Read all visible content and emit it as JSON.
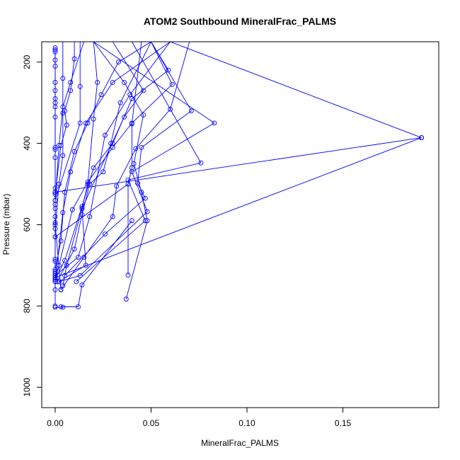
{
  "chart_data": {
    "type": "line",
    "title": "ATOM2 Southbound MineralFrac_PALMS",
    "xlabel": "MineralFrac_PALMS",
    "ylabel": "Pressure (mbar)",
    "xlim": [
      -0.007,
      0.2
    ],
    "ylim": [
      1050,
      150
    ],
    "y_reversed": true,
    "x_ticks": [
      0.0,
      0.05,
      0.1,
      0.15
    ],
    "x_tick_labels": [
      "0.00",
      "0.05",
      "0.10",
      "0.15"
    ],
    "y_ticks": [
      200,
      400,
      600,
      800,
      1000
    ],
    "y_tick_labels": [
      "200",
      "400",
      "600",
      "800",
      "1000"
    ],
    "series_color": "#0000ff",
    "grid": false,
    "series": [
      {
        "points": [
          [
            0.0,
            165
          ],
          [
            0.0,
            170
          ],
          [
            0.0,
            210
          ],
          [
            0.0,
            250
          ],
          [
            0.0,
            290
          ],
          [
            0.0,
            310
          ],
          [
            0.0,
            410
          ],
          [
            0.0,
            520
          ],
          [
            0.0,
            560
          ],
          [
            0.0,
            630
          ],
          [
            0.0,
            720
          ],
          [
            0.0,
            740
          ],
          [
            0.0,
            800
          ]
        ]
      },
      {
        "points": [
          [
            0.0,
            175
          ],
          [
            0.0,
            195
          ],
          [
            0.0,
            270
          ],
          [
            0.0,
            300
          ],
          [
            0.0,
            335
          ],
          [
            0.0,
            415
          ],
          [
            0.0,
            435
          ],
          [
            0.0,
            510
          ],
          [
            0.0,
            550
          ],
          [
            0.0,
            595
          ],
          [
            0.0,
            685
          ],
          [
            0.0,
            730
          ],
          [
            0.0,
            760
          ]
        ]
      },
      {
        "points": [
          [
            0.01,
            150
          ],
          [
            0.01,
            192
          ],
          [
            0.008,
            270
          ],
          [
            0.005,
            320
          ],
          [
            0.006,
            355
          ],
          [
            0.003,
            405
          ],
          [
            0.0,
            525
          ],
          [
            0.0,
            580
          ],
          [
            0.0,
            715
          ]
        ]
      },
      {
        "points": [
          [
            0.06,
            150
          ],
          [
            0.03,
            250
          ],
          [
            0.016,
            350
          ],
          [
            0.008,
            470
          ],
          [
            0.004,
            570
          ],
          [
            0.0,
            740
          ]
        ]
      },
      {
        "points": [
          [
            0.05,
            150
          ],
          [
            0.061,
            255
          ],
          [
            0.04,
            350
          ],
          [
            0.03,
            410
          ],
          [
            0.017,
            495
          ],
          [
            0.009,
            563
          ],
          [
            0.002,
            700
          ],
          [
            0.0,
            735
          ]
        ]
      },
      {
        "points": [
          [
            0.06,
            150
          ],
          [
            0.039,
            280
          ],
          [
            0.026,
            380
          ],
          [
            0.018,
            580
          ],
          [
            0.012,
            680
          ],
          [
            0.0,
            725
          ]
        ]
      },
      {
        "points": [
          [
            0.03,
            150
          ],
          [
            0.046,
            270
          ],
          [
            0.036,
            335
          ],
          [
            0.014,
            560
          ],
          [
            0.006,
            700
          ],
          [
            0.004,
            750
          ]
        ]
      },
      {
        "points": [
          [
            0.07,
            150
          ],
          [
            0.06,
            316
          ],
          [
            0.042,
            413
          ],
          [
            0.032,
            505
          ],
          [
            0.03,
            580
          ],
          [
            0.015,
            680
          ],
          [
            0.003,
            760
          ]
        ]
      },
      {
        "points": [
          [
            0.05,
            150
          ],
          [
            0.071,
            320
          ],
          [
            0.045,
            410
          ],
          [
            0.043,
            498
          ],
          [
            0.047,
            535
          ],
          [
            0.026,
            623
          ],
          [
            0.005,
            725
          ]
        ]
      },
      {
        "points": [
          [
            0.02,
            150
          ],
          [
            0.083,
            350
          ],
          [
            0.04,
            470
          ],
          [
            0.048,
            568
          ],
          [
            0.013,
            725
          ],
          [
            0.002,
            740
          ]
        ]
      },
      {
        "points": [
          [
            0.04,
            150
          ],
          [
            0.076,
            448
          ],
          [
            0.038,
            490
          ],
          [
            0.047,
            590
          ],
          [
            0.011,
            740
          ]
        ]
      },
      {
        "points": [
          [
            0.05,
            150
          ],
          [
            0.059,
            220
          ],
          [
            0.04,
            290
          ],
          [
            0.03,
            400
          ],
          [
            0.02,
            460
          ],
          [
            0.014,
            555
          ],
          [
            0.005,
            688
          ],
          [
            0.0,
            735
          ]
        ]
      },
      {
        "points": [
          [
            0.05,
            150
          ],
          [
            0.034,
            300
          ],
          [
            0.029,
            400
          ],
          [
            0.025,
            470
          ],
          [
            0.018,
            500
          ],
          [
            0.014,
            575
          ],
          [
            0.01,
            660
          ],
          [
            0.001,
            740
          ]
        ]
      },
      {
        "points": [
          [
            0.02,
            150
          ],
          [
            0.036,
            250
          ],
          [
            0.046,
            330
          ],
          [
            0.041,
            450
          ],
          [
            0.045,
            520
          ],
          [
            0.048,
            590
          ],
          [
            0.037,
            783
          ]
        ]
      },
      {
        "points": [
          [
            0.045,
            150
          ],
          [
            0.04,
            352
          ],
          [
            0.04,
            460
          ],
          [
            0.038,
            500
          ],
          [
            0.038,
            724
          ]
        ]
      },
      {
        "points": [
          [
            0.013,
            150
          ],
          [
            0.013,
            260
          ],
          [
            0.013,
            350
          ],
          [
            0.0,
            540
          ]
        ]
      },
      {
        "points": [
          [
            0.015,
            150
          ],
          [
            0.008,
            250
          ],
          [
            0.004,
            310
          ],
          [
            0.002,
            405
          ],
          [
            0.0,
            540
          ],
          [
            0.0,
            600
          ],
          [
            0.003,
            760
          ]
        ]
      },
      {
        "points": [
          [
            0.004,
            150
          ],
          [
            0.004,
            240
          ],
          [
            0.004,
            325
          ],
          [
            0.004,
            430
          ],
          [
            0.002,
            500
          ],
          [
            0.0,
            610
          ],
          [
            0.0,
            690
          ]
        ]
      },
      {
        "points": [
          [
            0.191,
            386
          ],
          [
            0.0,
            520
          ]
        ]
      },
      {
        "points": [
          [
            0.191,
            386
          ],
          [
            0.0,
            730
          ]
        ]
      },
      {
        "points": [
          [
            0.06,
            150
          ],
          [
            0.191,
            386
          ]
        ]
      },
      {
        "points": [
          [
            0.038,
            500
          ],
          [
            0.0,
            630
          ]
        ]
      },
      {
        "points": [
          [
            0.04,
            590
          ],
          [
            0.014,
            748
          ],
          [
            0.012,
            802
          ],
          [
            0.003,
            802
          ]
        ]
      },
      {
        "points": [
          [
            0.004,
            803
          ],
          [
            0.0,
            803
          ]
        ]
      },
      {
        "points": [
          [
            0.05,
            150
          ],
          [
            0.033,
            200
          ],
          [
            0.024,
            280
          ],
          [
            0.017,
            350
          ],
          [
            0.01,
            420
          ],
          [
            0.005,
            520
          ],
          [
            0.003,
            640
          ],
          [
            0.0,
            710
          ]
        ]
      },
      {
        "points": [
          [
            0.02,
            150
          ],
          [
            0.022,
            250
          ],
          [
            0.02,
            340
          ],
          [
            0.017,
            500
          ],
          [
            0.014,
            560
          ],
          [
            0.016,
            700
          ],
          [
            0.002,
            740
          ]
        ]
      }
    ]
  }
}
